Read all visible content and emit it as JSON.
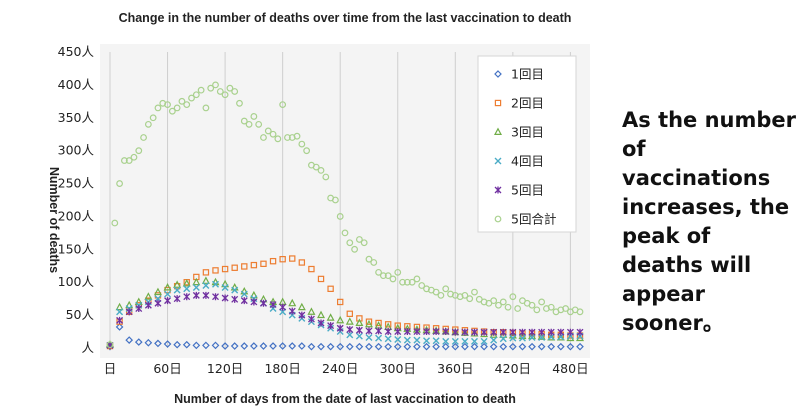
{
  "chart_data": {
    "type": "scatter",
    "title": "Change in the number of deaths over time from the last vaccination to death",
    "xlabel": "Number of days from the date of last vaccination to death",
    "ylabel": "Number of deaths",
    "xlim": [
      0,
      490
    ],
    "ylim": [
      0,
      450
    ],
    "x_ticks": [
      0,
      60,
      120,
      180,
      240,
      300,
      360,
      420,
      480
    ],
    "x_tick_labels": [
      "日",
      "60日",
      "120日",
      "180日",
      "240日",
      "300日",
      "360日",
      "420日",
      "480日"
    ],
    "y_ticks": [
      0,
      50,
      100,
      150,
      200,
      250,
      300,
      350,
      400,
      450
    ],
    "y_tick_labels": [
      "人",
      "50人",
      "100人",
      "150人",
      "200人",
      "250人",
      "300人",
      "350人",
      "400人",
      "450人"
    ],
    "grid": "vertical",
    "legend_position": "top-right",
    "series": [
      {
        "name": "1回目",
        "color": "#4472c4",
        "marker": "diamond",
        "x": [
          0,
          10,
          20,
          30,
          40,
          50,
          60,
          70,
          80,
          90,
          100,
          110,
          120,
          130,
          140,
          150,
          160,
          170,
          180,
          190,
          200,
          210,
          220,
          230,
          240,
          250,
          260,
          270,
          280,
          290,
          300,
          310,
          320,
          330,
          340,
          350,
          360,
          370,
          380,
          390,
          400,
          410,
          420,
          430,
          440,
          450,
          460,
          470,
          480,
          490
        ],
        "y": [
          2,
          32,
          12,
          9,
          8,
          7,
          6,
          5,
          5,
          4,
          4,
          4,
          3,
          3,
          3,
          3,
          3,
          3,
          3,
          3,
          3,
          2,
          2,
          2,
          2,
          2,
          2,
          2,
          2,
          2,
          2,
          2,
          2,
          2,
          2,
          2,
          2,
          2,
          2,
          2,
          2,
          2,
          2,
          2,
          2,
          2,
          2,
          2,
          2,
          2
        ]
      },
      {
        "name": "2回目",
        "color": "#ed7d31",
        "marker": "square",
        "x": [
          0,
          10,
          20,
          30,
          40,
          50,
          60,
          70,
          80,
          90,
          100,
          110,
          120,
          130,
          140,
          150,
          160,
          170,
          180,
          190,
          200,
          210,
          220,
          230,
          240,
          250,
          260,
          270,
          280,
          290,
          300,
          310,
          320,
          330,
          340,
          350,
          360,
          370,
          380,
          390,
          400,
          410,
          420,
          430,
          440,
          450,
          460,
          470,
          480,
          490
        ],
        "y": [
          3,
          40,
          55,
          65,
          72,
          80,
          88,
          94,
          100,
          108,
          115,
          118,
          120,
          122,
          124,
          126,
          128,
          132,
          135,
          136,
          130,
          120,
          105,
          90,
          70,
          52,
          45,
          40,
          38,
          36,
          34,
          33,
          32,
          31,
          30,
          29,
          28,
          27,
          26,
          25,
          24,
          24,
          23,
          22,
          22,
          21,
          20,
          20,
          19,
          19
        ]
      },
      {
        "name": "3回目",
        "color": "#70ad47",
        "marker": "triangle",
        "x": [
          0,
          10,
          20,
          30,
          40,
          50,
          60,
          70,
          80,
          90,
          100,
          110,
          120,
          130,
          140,
          150,
          160,
          170,
          180,
          190,
          200,
          210,
          220,
          230,
          240,
          250,
          260,
          270,
          280,
          290,
          300,
          310,
          320,
          330,
          340,
          350,
          360,
          370,
          380,
          390,
          400,
          410,
          420,
          430,
          440,
          450,
          460,
          470,
          480,
          490
        ],
        "y": [
          5,
          62,
          65,
          70,
          78,
          85,
          92,
          96,
          98,
          100,
          102,
          100,
          97,
          92,
          86,
          80,
          74,
          70,
          70,
          68,
          62,
          55,
          50,
          46,
          42,
          40,
          38,
          36,
          34,
          32,
          30,
          29,
          28,
          27,
          26,
          25,
          24,
          23,
          22,
          21,
          20,
          20,
          19,
          18,
          18,
          17,
          16,
          16,
          15,
          15
        ]
      },
      {
        "name": "4回目",
        "color": "#4bacc6",
        "marker": "x",
        "x": [
          0,
          10,
          20,
          30,
          40,
          50,
          60,
          70,
          80,
          90,
          100,
          110,
          120,
          130,
          140,
          150,
          160,
          170,
          180,
          190,
          200,
          210,
          220,
          230,
          240,
          250,
          260,
          270,
          280,
          290,
          300,
          310,
          320,
          330,
          340,
          350,
          360,
          370,
          380,
          390,
          400,
          410,
          420,
          430,
          440,
          450,
          460,
          470,
          480,
          490
        ],
        "y": [
          4,
          55,
          60,
          65,
          70,
          75,
          82,
          88,
          90,
          92,
          95,
          97,
          92,
          88,
          82,
          75,
          68,
          60,
          55,
          50,
          45,
          40,
          35,
          30,
          25,
          20,
          18,
          16,
          15,
          14,
          13,
          12,
          12,
          11,
          11,
          10,
          10,
          10,
          10,
          10,
          12,
          14,
          15,
          15,
          16,
          16,
          17,
          17,
          18,
          18
        ]
      },
      {
        "name": "5回目",
        "color": "#7030a0",
        "marker": "star",
        "x": [
          0,
          10,
          20,
          30,
          40,
          50,
          60,
          70,
          80,
          90,
          100,
          110,
          120,
          130,
          140,
          150,
          160,
          170,
          180,
          190,
          200,
          210,
          220,
          230,
          240,
          250,
          260,
          270,
          280,
          290,
          300,
          310,
          320,
          330,
          340,
          350,
          360,
          370,
          380,
          390,
          400,
          410,
          420,
          430,
          440,
          450,
          460,
          470,
          480,
          490
        ],
        "y": [
          4,
          42,
          55,
          60,
          65,
          68,
          72,
          75,
          78,
          80,
          80,
          78,
          76,
          74,
          72,
          70,
          68,
          66,
          62,
          56,
          50,
          44,
          38,
          34,
          30,
          28,
          27,
          26,
          26,
          25,
          25,
          25,
          25,
          25,
          25,
          25,
          24,
          24,
          24,
          24,
          24,
          24,
          24,
          24,
          24,
          24,
          24,
          24,
          24,
          24
        ]
      },
      {
        "name": "5回合計",
        "color": "#a9d18e",
        "marker": "circle",
        "x": [
          0,
          5,
          10,
          15,
          20,
          25,
          30,
          35,
          40,
          45,
          50,
          55,
          60,
          65,
          70,
          75,
          80,
          85,
          90,
          95,
          100,
          105,
          110,
          115,
          120,
          125,
          130,
          135,
          140,
          145,
          150,
          155,
          160,
          165,
          170,
          175,
          180,
          185,
          190,
          195,
          200,
          205,
          210,
          215,
          220,
          225,
          230,
          235,
          240,
          245,
          250,
          255,
          260,
          265,
          270,
          275,
          280,
          285,
          290,
          295,
          300,
          305,
          310,
          315,
          320,
          325,
          330,
          335,
          340,
          345,
          350,
          355,
          360,
          365,
          370,
          375,
          380,
          385,
          390,
          395,
          400,
          405,
          410,
          415,
          420,
          425,
          430,
          435,
          440,
          445,
          450,
          455,
          460,
          465,
          470,
          475,
          480,
          485,
          490
        ],
        "y": [
          5,
          190,
          250,
          285,
          285,
          290,
          300,
          320,
          340,
          350,
          365,
          372,
          370,
          360,
          365,
          375,
          370,
          380,
          385,
          392,
          365,
          395,
          400,
          390,
          385,
          395,
          390,
          372,
          345,
          340,
          352,
          340,
          320,
          330,
          325,
          318,
          370,
          320,
          320,
          322,
          310,
          300,
          278,
          275,
          270,
          260,
          228,
          225,
          200,
          175,
          160,
          150,
          165,
          160,
          135,
          130,
          115,
          110,
          110,
          105,
          115,
          100,
          100,
          100,
          105,
          95,
          90,
          88,
          85,
          80,
          90,
          82,
          80,
          78,
          80,
          75,
          85,
          74,
          70,
          68,
          72,
          65,
          70,
          62,
          78,
          60,
          72,
          68,
          65,
          58,
          70,
          60,
          62,
          55,
          58,
          60,
          55,
          58,
          55
        ]
      }
    ]
  },
  "side_note": "As the number of vaccinations increases, the peak of deaths will appear sooner。"
}
